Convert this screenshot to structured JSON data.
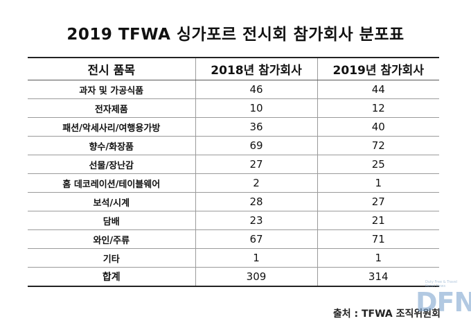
{
  "title": "2019 TFWA 싱가포르 전시회 참가회사 분포표",
  "table": {
    "headers": [
      "전시 품목",
      "2018년 참가회사",
      "2019년 참가회사"
    ],
    "rows": [
      {
        "category": "과자 및 가공식품",
        "y2018": "46",
        "y2019": "44"
      },
      {
        "category": "전자제품",
        "y2018": "10",
        "y2019": "12"
      },
      {
        "category": "패션/악세사리/여행용가방",
        "y2018": "36",
        "y2019": "40"
      },
      {
        "category": "향수/화장품",
        "y2018": "69",
        "y2019": "72"
      },
      {
        "category": "선물/장난감",
        "y2018": "27",
        "y2019": "25"
      },
      {
        "category": "홈 데코레이션/테이블웨어",
        "y2018": "2",
        "y2019": "1"
      },
      {
        "category": "보석/시계",
        "y2018": "28",
        "y2019": "27"
      },
      {
        "category": "담배",
        "y2018": "23",
        "y2019": "21"
      },
      {
        "category": "와인/주류",
        "y2018": "67",
        "y2019": "71"
      },
      {
        "category": "기타",
        "y2018": "1",
        "y2019": "1"
      },
      {
        "category": "합계",
        "y2018": "309",
        "y2019": "314"
      }
    ]
  },
  "source": "출처 : TFWA 조직위원회",
  "watermark": {
    "logo_text": "DFN",
    "tagline": "Duty Free & Travel Retail News"
  }
}
